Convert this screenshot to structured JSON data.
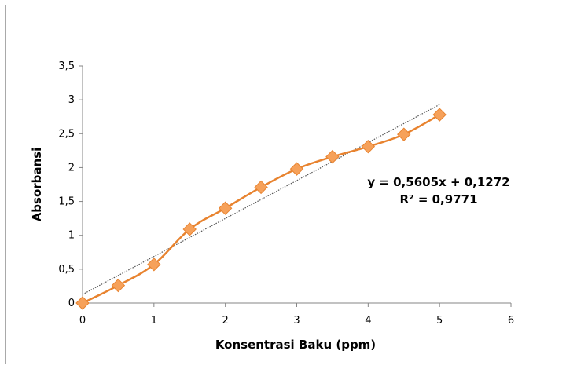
{
  "chart_data": {
    "type": "scatter",
    "title": "",
    "xlabel": "Konsentrasi Baku (ppm)",
    "ylabel": "Absorbansi",
    "xlim": [
      0,
      6
    ],
    "ylim": [
      0,
      3.5
    ],
    "x_ticks": [
      "0",
      "1",
      "2",
      "3",
      "4",
      "5",
      "6"
    ],
    "y_ticks": [
      "0",
      "0,5",
      "1",
      "1,5",
      "2",
      "2,5",
      "3",
      "3,5"
    ],
    "grid": false,
    "legend": "none",
    "series": [
      {
        "x": [
          0,
          0.5,
          1,
          1.5,
          2,
          2.5,
          3,
          3.5,
          4,
          4.5,
          5
        ],
        "y": [
          0,
          0.26,
          0.57,
          1.09,
          1.4,
          1.71,
          1.98,
          2.16,
          2.31,
          2.49,
          2.78
        ],
        "color": "#E8832F",
        "marker_color": "#F6A15A",
        "line": "smooth",
        "marker": "diamond"
      }
    ],
    "trendline": {
      "type": "linear",
      "slope": 0.5605,
      "intercept": 0.1272,
      "x_range": [
        0,
        5
      ],
      "color": "#555555",
      "style": "dotted"
    },
    "annotations": {
      "equation": "y = 0,5605x + 0,1272",
      "r2": "R² = 0,9771"
    }
  }
}
